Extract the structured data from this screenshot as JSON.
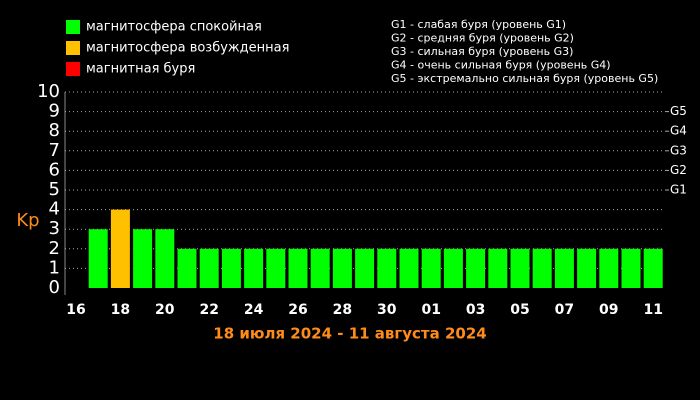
{
  "chart_data": {
    "type": "bar",
    "title": "18 июля 2024 - 11 августа 2024",
    "ylabel": "Kp",
    "legend": [
      {
        "name": "магнитосфера спокойная",
        "color": "#00ff00"
      },
      {
        "name": "магнитосфера возбужденная",
        "color": "#ffc000"
      },
      {
        "name": "магнитная буря",
        "color": "#ff0000"
      }
    ],
    "notes": [
      "G1 - слабая буря (уровень G1)",
      "G2 - средняя буря (уровень G2)",
      "G3 - сильная буря (уровень G3)",
      "G4 - очень сильная буря (уровень G4)",
      "G5 - экстремально сильная буря (уровень G5)"
    ],
    "categories": [
      "16",
      null,
      "18",
      null,
      "20",
      null,
      "22",
      null,
      "24",
      null,
      "26",
      null,
      "28",
      null,
      "30",
      null,
      "01",
      null,
      "03",
      null,
      "05",
      null,
      "07",
      null,
      "09",
      null,
      "11"
    ],
    "values": [
      null,
      3,
      4,
      3,
      3,
      2,
      2,
      2,
      2,
      2,
      2,
      2,
      2,
      2,
      2,
      2,
      2,
      2,
      2,
      2,
      2,
      2,
      2,
      2,
      2,
      2,
      2
    ],
    "colors": [
      null,
      "#00ff00",
      "#ffc000",
      "#00ff00",
      "#00ff00",
      "#00ff00",
      "#00ff00",
      "#00ff00",
      "#00ff00",
      "#00ff00",
      "#00ff00",
      "#00ff00",
      "#00ff00",
      "#00ff00",
      "#00ff00",
      "#00ff00",
      "#00ff00",
      "#00ff00",
      "#00ff00",
      "#00ff00",
      "#00ff00",
      "#00ff00",
      "#00ff00",
      "#00ff00",
      "#00ff00",
      "#00ff00",
      "#00ff00"
    ],
    "ylim": [
      0,
      10
    ],
    "yticks": [
      0,
      1,
      2,
      3,
      4,
      5,
      6,
      7,
      8,
      9,
      10
    ],
    "y2lim": [
      0,
      10
    ],
    "y2ticks": [
      {
        "value": 5,
        "label": "G1"
      },
      {
        "value": 6,
        "label": "G2"
      },
      {
        "value": 7,
        "label": "G3"
      },
      {
        "value": 8,
        "label": "G4"
      },
      {
        "value": 9,
        "label": "G5"
      }
    ],
    "grid": true
  }
}
